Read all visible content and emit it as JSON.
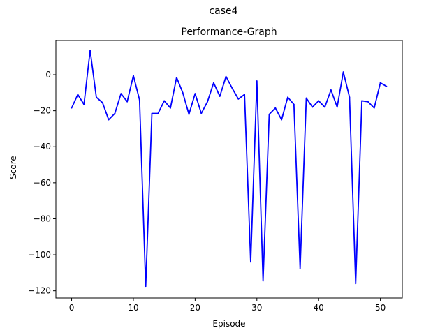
{
  "figure": {
    "suptitle": "case4"
  },
  "chart_data": {
    "type": "line",
    "title": "Performance-Graph",
    "xlabel": "Episode",
    "ylabel": "Score",
    "xlim": [
      -2.55,
      53.55
    ],
    "ylim": [
      -124,
      19
    ],
    "xticks": [
      0,
      10,
      20,
      30,
      40,
      50
    ],
    "yticks": [
      -120,
      -100,
      -80,
      -60,
      -40,
      -20,
      0
    ],
    "ytick_labels": [
      "−120",
      "−100",
      "−80",
      "−60",
      "−40",
      "−20",
      "0"
    ],
    "grid": false,
    "series": [
      {
        "color": "#0000ff",
        "x": [
          0,
          1,
          2,
          3,
          4,
          5,
          6,
          7,
          8,
          9,
          10,
          11,
          12,
          13,
          14,
          15,
          16,
          17,
          18,
          19,
          20,
          21,
          22,
          23,
          24,
          25,
          26,
          27,
          28,
          29,
          30,
          31,
          32,
          33,
          34,
          35,
          36,
          37,
          38,
          39,
          40,
          41,
          42,
          43,
          44,
          45,
          46,
          47,
          48,
          49,
          50,
          51
        ],
        "values": [
          -18.5,
          -11,
          -16.5,
          13.5,
          -12.5,
          -15.5,
          -25,
          -21.5,
          -10.5,
          -15,
          -0.5,
          -14,
          -117.5,
          -21.5,
          -21.5,
          -14.5,
          -18.5,
          -1.5,
          -10,
          -22,
          -10.5,
          -21.5,
          -15,
          -4.5,
          -12,
          -1,
          -7.5,
          -13.5,
          -11,
          -104,
          -3.5,
          -114.5,
          -22,
          -18.5,
          -25,
          -12.5,
          -16.5,
          -107.5,
          -13,
          -18,
          -14.5,
          -18,
          -8.5,
          -18,
          1.5,
          -12.5,
          -116,
          -14.5,
          -15,
          -18.5,
          -4.5,
          -6.5
        ]
      }
    ]
  }
}
